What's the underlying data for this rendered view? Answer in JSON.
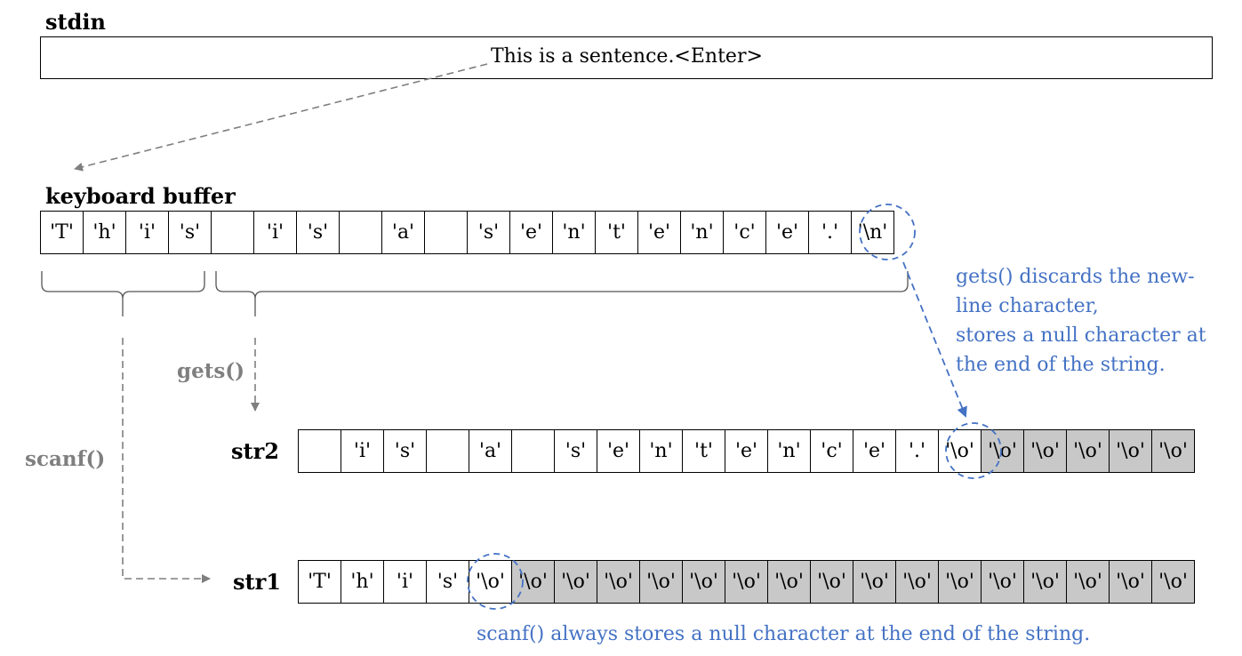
{
  "stdin": {
    "label": "stdin",
    "text": "This is a sentence.<Enter>"
  },
  "keyboard_buffer": {
    "label": "keyboard buffer",
    "cells": [
      "'T'",
      "'h'",
      "'i'",
      "'s'",
      "",
      "'i'",
      "'s'",
      "",
      "'a'",
      "",
      "'s'",
      "'e'",
      "'n'",
      "'t'",
      "'e'",
      "'n'",
      "'c'",
      "'e'",
      "'.'",
      "'\\n'"
    ]
  },
  "str2": {
    "label": "str2",
    "cells": [
      "",
      "'i'",
      "'s'",
      "",
      "'a'",
      "",
      "'s'",
      "'e'",
      "'n'",
      "'t'",
      "'e'",
      "'n'",
      "'c'",
      "'e'",
      "'.'",
      "'\\o'",
      "'\\o'",
      "'\\o'",
      "'\\o'",
      "'\\o'",
      "'\\o'"
    ],
    "padded_from": 16
  },
  "str1": {
    "label": "str1",
    "cells": [
      "'T'",
      "'h'",
      "'i'",
      "'s'",
      "'\\o'",
      "'\\o'",
      "'\\o'",
      "'\\o'",
      "'\\o'",
      "'\\o'",
      "'\\o'",
      "'\\o'",
      "'\\o'",
      "'\\o'",
      "'\\o'",
      "'\\o'",
      "'\\o'",
      "'\\o'",
      "'\\o'",
      "'\\o'",
      "'\\o'"
    ],
    "padded_from": 5
  },
  "functions": {
    "gets": "gets()",
    "scanf": "scanf()"
  },
  "notes": {
    "gets_lines": [
      "gets() discards the new-",
      "line character,",
      "stores a null character at",
      "the end of the string."
    ],
    "scanf": "scanf() always stores a null character at the end of the string."
  },
  "colors": {
    "note_blue": "#4472c4",
    "arrow_gray": "#7f7f7f",
    "padding_gray": "#c8c8c8"
  }
}
